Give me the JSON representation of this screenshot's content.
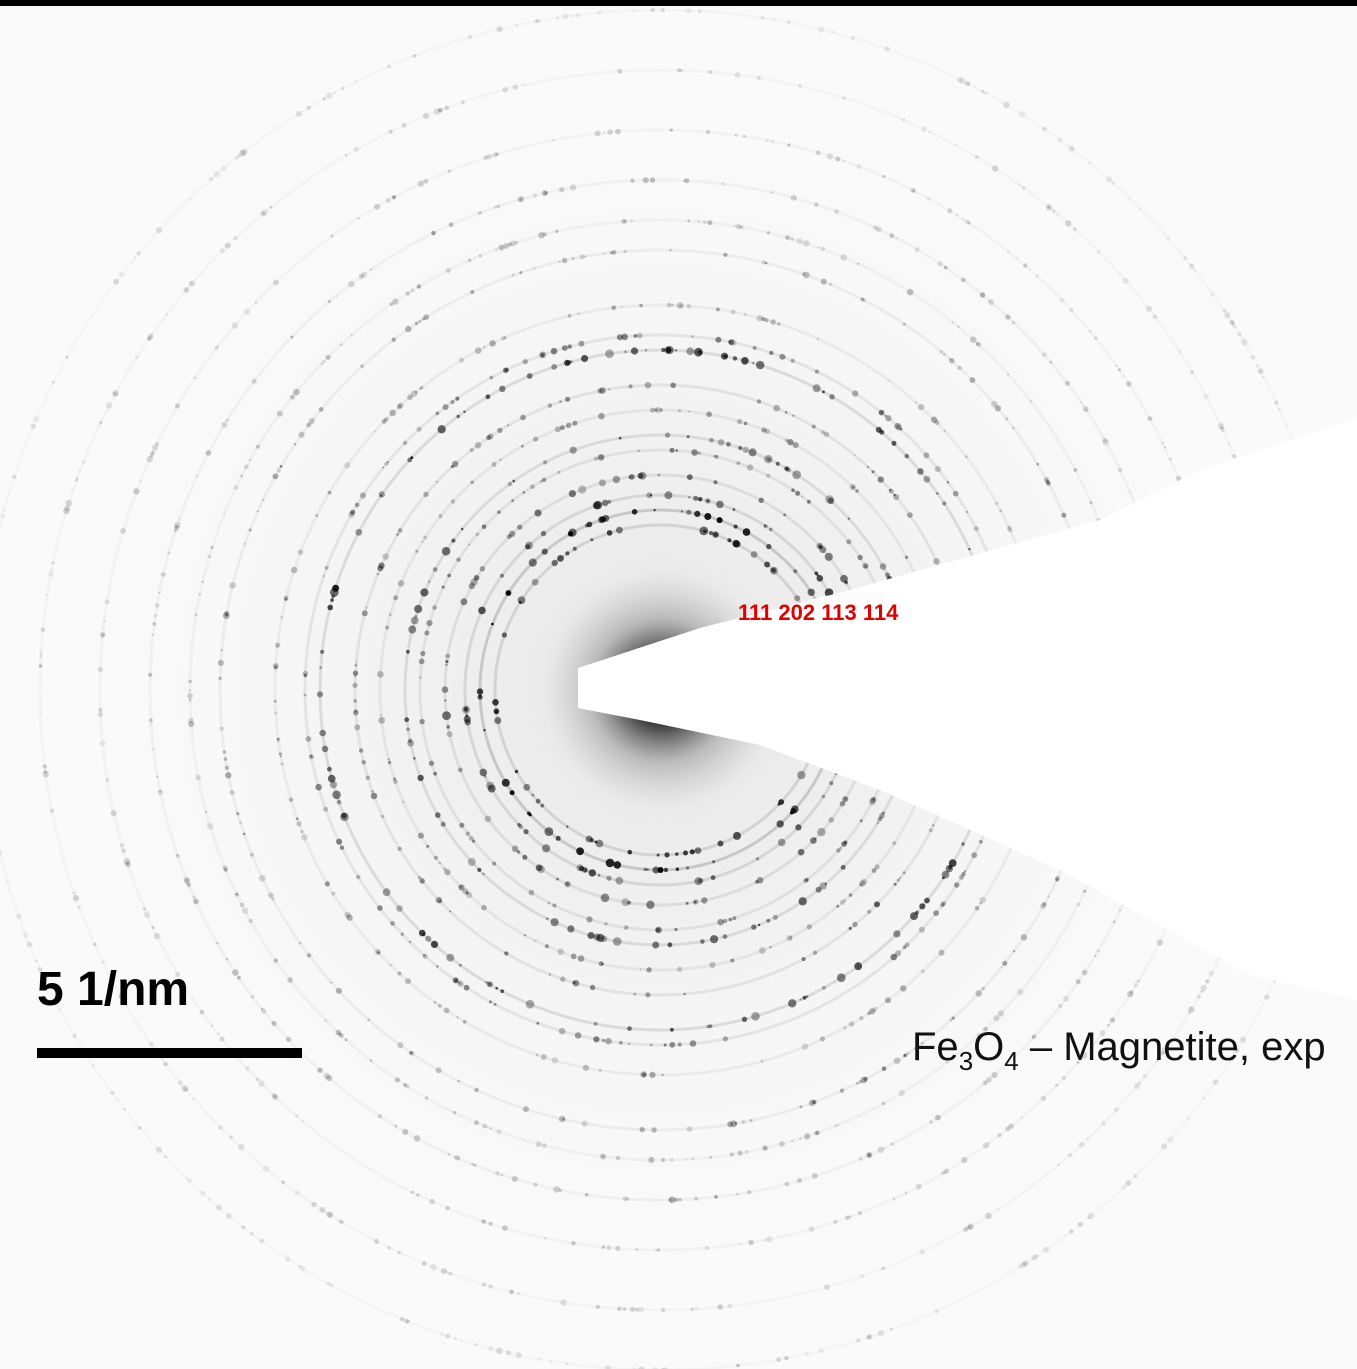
{
  "annotations": {
    "reflections": "111 202 113 114",
    "caption": [
      "Fe",
      "3",
      "O",
      "4",
      " – Magnetite, exp"
    ],
    "scale_bar": "5 1/nm"
  }
}
